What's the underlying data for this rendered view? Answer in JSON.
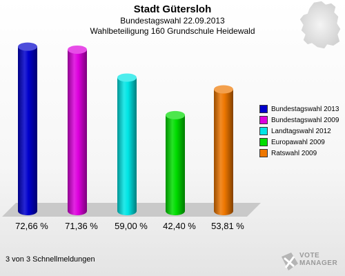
{
  "chart_data": {
    "type": "bar",
    "title": "Stadt Gütersloh",
    "subtitle_1": "Bundestagswahl 22.09.2013",
    "subtitle_2": "Wahlbeteiligung 160 Grundschule Heidewald",
    "categories": [
      "Bundestagswahl 2013",
      "Bundestagswahl 2009",
      "Landtagswahl 2012",
      "Europawahl 2009",
      "Ratswahl 2009"
    ],
    "values": [
      72.66,
      71.36,
      59.0,
      42.4,
      53.81
    ],
    "value_labels": [
      "72,66 %",
      "71,36 %",
      "59,00 %",
      "42,40 %",
      "53,81 %"
    ],
    "colors": [
      "#0000cc",
      "#dd00dd",
      "#00e5e5",
      "#00dd00",
      "#ee7700"
    ],
    "ylim": [
      0,
      75
    ],
    "legend_position": "right",
    "grid": false
  },
  "footer_text": "3 von 3 Schnellmeldungen",
  "logo": {
    "line1": "VOTE",
    "line2": "MANAGER",
    "icon": "ballot-cross-icon"
  },
  "map_icon": "germany-map-icon"
}
